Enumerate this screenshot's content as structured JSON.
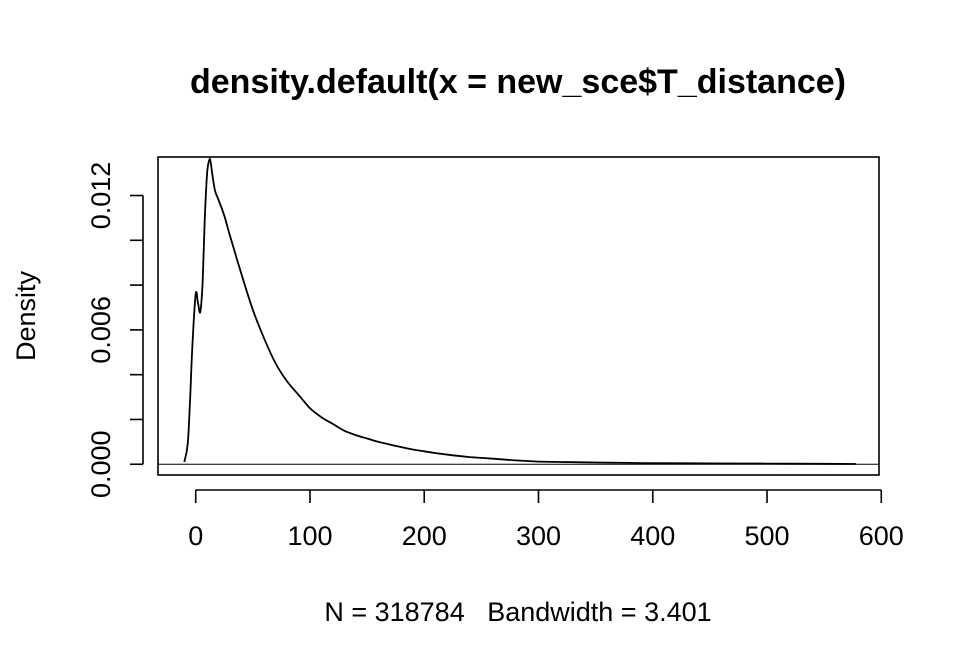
{
  "chart_data": {
    "type": "line",
    "title": "density.default(x = new_sce$T_distance)",
    "subtitle": "N = 318784   Bandwidth = 3.401",
    "xlabel": "",
    "ylabel": "Density",
    "xlim": [
      -33,
      598
    ],
    "ylim": [
      -0.00048,
      0.01372
    ],
    "x_ticks": [
      0,
      100,
      200,
      300,
      400,
      500,
      600
    ],
    "x_tick_labels": [
      "0",
      "100",
      "200",
      "300",
      "400",
      "500",
      "600"
    ],
    "y_ticks": [
      0.0,
      0.002,
      0.004,
      0.006,
      0.008,
      0.01,
      0.012
    ],
    "y_tick_labels": [
      "0.000",
      "",
      "",
      "0.006",
      "",
      "",
      "0.012"
    ],
    "grid": false,
    "series": [
      {
        "x": [
          -10,
          -7,
          -5,
          -3,
          0,
          2,
          4,
          6,
          8,
          10,
          12,
          13,
          15,
          17,
          20,
          25,
          30,
          40,
          50,
          60,
          70,
          80,
          90,
          100,
          110,
          120,
          130,
          140,
          150,
          160,
          175,
          190,
          200,
          210,
          225,
          240,
          260,
          280,
          300,
          320,
          350,
          380,
          400,
          450,
          500,
          550,
          578
        ],
        "y": [
          0.0001,
          0.0009,
          0.0028,
          0.0052,
          0.0076,
          0.0072,
          0.0068,
          0.0081,
          0.011,
          0.013,
          0.0136,
          0.0135,
          0.0128,
          0.0122,
          0.0118,
          0.0111,
          0.0102,
          0.0085,
          0.0069,
          0.0056,
          0.0045,
          0.0037,
          0.0031,
          0.0025,
          0.0021,
          0.0018,
          0.0015,
          0.0013,
          0.00115,
          0.001,
          0.00082,
          0.00066,
          0.00058,
          0.0005,
          0.0004,
          0.00032,
          0.00025,
          0.00017,
          0.00012,
          0.0001,
          8e-05,
          6e-05,
          5e-05,
          4e-05,
          3e-05,
          2e-05,
          1e-05
        ]
      }
    ]
  }
}
